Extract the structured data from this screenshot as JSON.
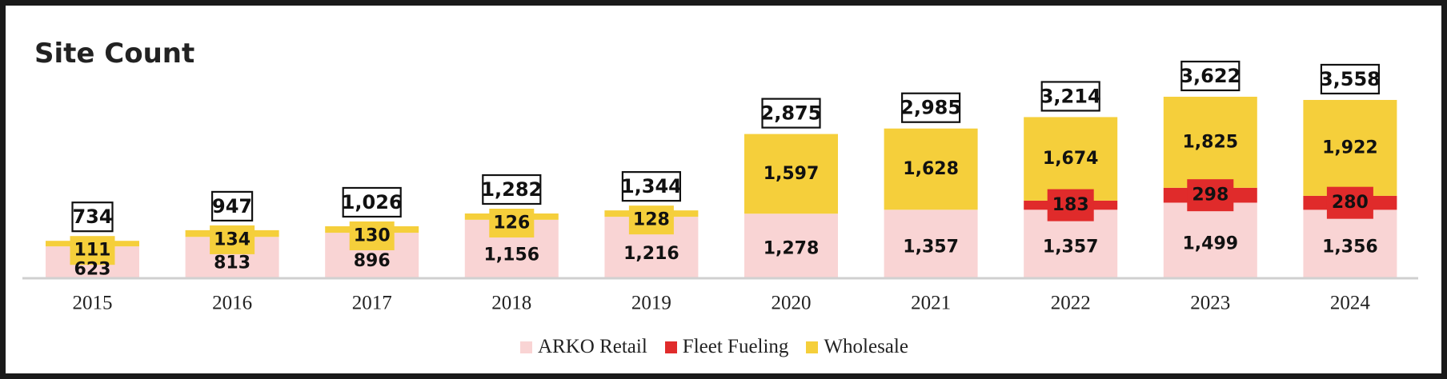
{
  "title": "Site Count",
  "colors": {
    "arko_retail": "#f9d4d4",
    "fleet_fueling": "#e02b2b",
    "wholesale": "#f5cf3b",
    "axis": "#d0d0d0",
    "frame": "#1a1a1a"
  },
  "chart_data": {
    "type": "bar",
    "stacked": true,
    "title": "Site Count",
    "categories": [
      "2015",
      "2016",
      "2017",
      "2018",
      "2019",
      "2020",
      "2021",
      "2022",
      "2023",
      "2024"
    ],
    "series": [
      {
        "name": "ARKO Retail",
        "values": [
          623,
          813,
          896,
          1156,
          1216,
          1278,
          1357,
          1357,
          1499,
          1356
        ]
      },
      {
        "name": "Fleet Fueling",
        "values": [
          0,
          0,
          0,
          0,
          0,
          0,
          0,
          183,
          298,
          280
        ]
      },
      {
        "name": "Wholesale",
        "values": [
          111,
          134,
          130,
          126,
          128,
          1597,
          1628,
          1674,
          1825,
          1922
        ]
      }
    ],
    "segment_labels": [
      {
        "arko": "623",
        "fleet": "",
        "wholesale": "111"
      },
      {
        "arko": "813",
        "fleet": "",
        "wholesale": "134"
      },
      {
        "arko": "896",
        "fleet": "",
        "wholesale": "130"
      },
      {
        "arko": "1,156",
        "fleet": "",
        "wholesale": "126"
      },
      {
        "arko": "1,216",
        "fleet": "",
        "wholesale": "128"
      },
      {
        "arko": "1,278",
        "fleet": "",
        "wholesale": "1,597"
      },
      {
        "arko": "1,357",
        "fleet": "",
        "wholesale": "1,628"
      },
      {
        "arko": "1,357",
        "fleet": "183",
        "wholesale": "1,674"
      },
      {
        "arko": "1,499",
        "fleet": "298",
        "wholesale": "1,825"
      },
      {
        "arko": "1,356",
        "fleet": "280",
        "wholesale": "1,922"
      }
    ],
    "totals": [
      734,
      947,
      1026,
      1282,
      1344,
      2875,
      2985,
      3214,
      3622,
      3558
    ],
    "total_labels": [
      "734",
      "947",
      "1,026",
      "1,282",
      "1,344",
      "2,875",
      "2,985",
      "3,214",
      "3,622",
      "3,558"
    ],
    "legend_position": "bottom-center",
    "grid": false
  },
  "legend": [
    {
      "label": "ARKO Retail",
      "color": "#f9d4d4"
    },
    {
      "label": "Fleet Fueling",
      "color": "#e02b2b"
    },
    {
      "label": "Wholesale",
      "color": "#f5cf3b"
    }
  ]
}
